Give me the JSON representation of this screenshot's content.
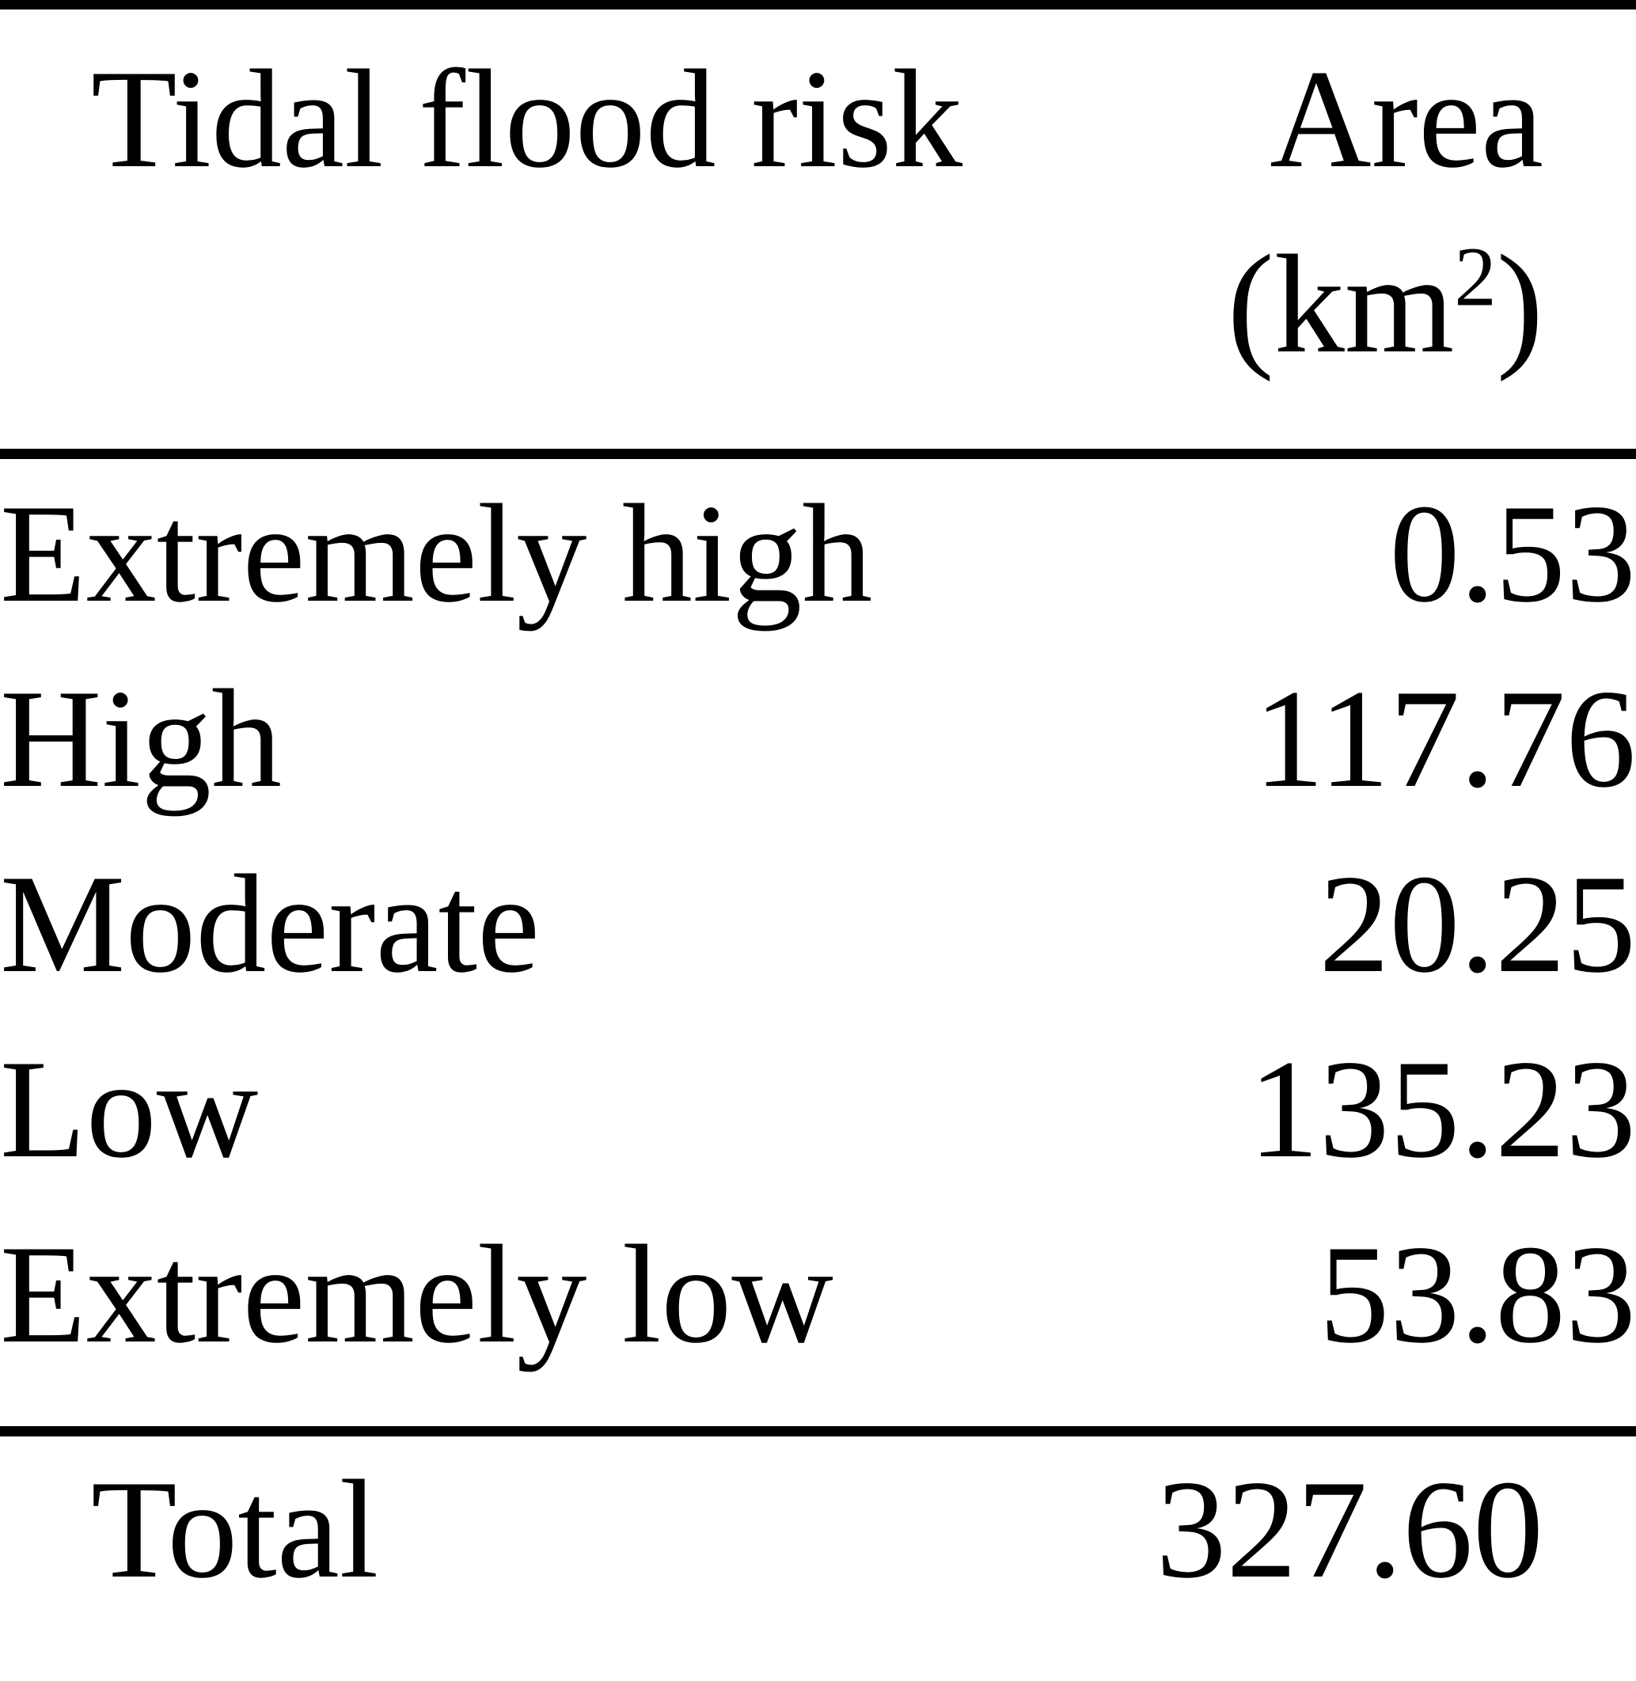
{
  "table": {
    "header": {
      "col1": "Tidal flood risk",
      "col2_line1": "Area",
      "col2_unit_open": "(km",
      "col2_unit_exp": "2",
      "col2_unit_close": ")"
    },
    "rows": [
      {
        "risk": "Extremely high",
        "area": "0.53"
      },
      {
        "risk": "High",
        "area": "117.76"
      },
      {
        "risk": "Moderate",
        "area": "20.25"
      },
      {
        "risk": "Low",
        "area": "135.23"
      },
      {
        "risk": "Extremely low",
        "area": "53.83"
      }
    ],
    "total": {
      "label": "Total",
      "area": "327.60"
    }
  },
  "chart_data": {
    "type": "table",
    "columns": [
      "Tidal flood risk",
      "Area (km2)"
    ],
    "rows": [
      [
        "Extremely high",
        0.53
      ],
      [
        "High",
        117.76
      ],
      [
        "Moderate",
        20.25
      ],
      [
        "Low",
        135.23
      ],
      [
        "Extremely low",
        53.83
      ]
    ],
    "total_row": [
      "Total",
      327.6
    ],
    "notes": {
      "unit": "km2",
      "style": "booktabs rules: top, below header, above total, bottom",
      "column_alignment": [
        "left",
        "right"
      ]
    },
    "colors": {
      "text": "#000000",
      "background": "#ffffff",
      "rule": "#000000"
    }
  }
}
